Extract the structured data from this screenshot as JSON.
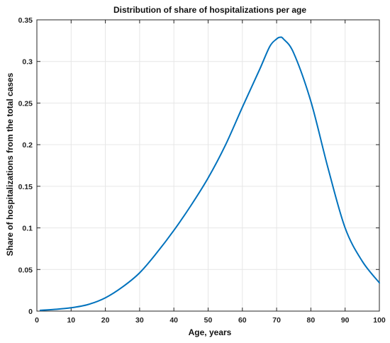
{
  "chart_data": {
    "type": "line",
    "title": "Distribution of share of hospitalizations per age",
    "xlabel": "Age, years",
    "ylabel": "Share of hospitalizations from the total cases",
    "xlim": [
      0,
      100
    ],
    "ylim": [
      0,
      0.35
    ],
    "xticks": [
      "0",
      "10",
      "20",
      "30",
      "40",
      "50",
      "60",
      "70",
      "80",
      "90",
      "100"
    ],
    "yticks": [
      "0",
      "0.05",
      "0.1",
      "0.15",
      "0.2",
      "0.25",
      "0.3",
      "0.35"
    ],
    "grid": true,
    "colors": {
      "line": "#0072bd",
      "grid": "#e6e6e6",
      "axis": "#262626"
    },
    "series": [
      {
        "x": [
          1,
          5,
          10,
          15,
          20,
          25,
          30,
          35,
          40,
          45,
          50,
          55,
          60,
          65,
          68,
          70,
          71,
          72,
          75,
          80,
          85,
          90,
          95,
          100
        ],
        "y": [
          0.001,
          0.002,
          0.004,
          0.008,
          0.016,
          0.029,
          0.046,
          0.07,
          0.097,
          0.127,
          0.16,
          0.199,
          0.245,
          0.29,
          0.318,
          0.327,
          0.329,
          0.327,
          0.31,
          0.252,
          0.172,
          0.1,
          0.06,
          0.034
        ]
      }
    ]
  }
}
